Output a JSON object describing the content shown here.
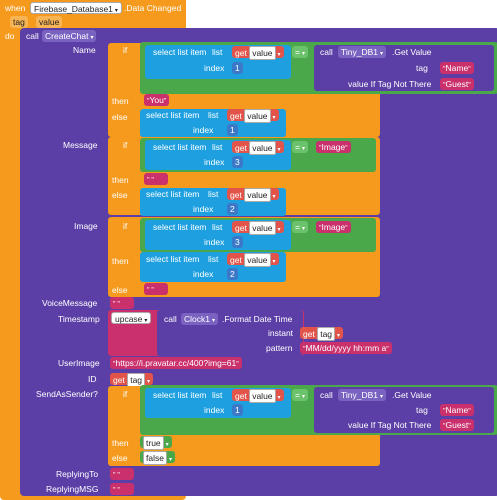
{
  "event": {
    "when": "when",
    "component": "Firebase_Database1",
    "event_name": ".Data Changed",
    "param_tag": "tag",
    "param_value": "value",
    "do": "do"
  },
  "call": {
    "call_label": "call",
    "procedure": "CreateChat"
  },
  "args": {
    "name": "Name",
    "message": "Message",
    "image": "Image",
    "voice_message": "VoiceMessage",
    "timestamp": "Timestamp",
    "user_image": "UserImage",
    "id": "ID",
    "send_as_sender": "SendAsSender?",
    "replying_to": "ReplyingTo",
    "replying_msg": "ReplyingMSG"
  },
  "keywords": {
    "if": "if",
    "then": "then",
    "else": "else",
    "select_list_item": "select list item",
    "list": "list",
    "index": "index",
    "get": "get",
    "eq": "=",
    "tag": "tag",
    "value_if_tag_not_there": "value If Tag Not There",
    "call": "call",
    "get_value": ".Get Value",
    "format_datetime": ".Format Date Time",
    "instant": "instant",
    "pattern": "pattern",
    "true": "true",
    "false": "false",
    "upcase": "upcase"
  },
  "values": {
    "var_value": "value",
    "var_tag": "tag",
    "tinydb": "Tiny_DB1",
    "clock": "Clock1",
    "name_str": "Name",
    "guest_str": "Guest",
    "you_str": "You",
    "image_str": "Image",
    "pattern_str": "MM/dd/yyyy hh:mm a",
    "avatar_url": "https://i.pravatar.cc/400?img=61",
    "n1": "1",
    "n3": "3",
    "n2": "2"
  }
}
